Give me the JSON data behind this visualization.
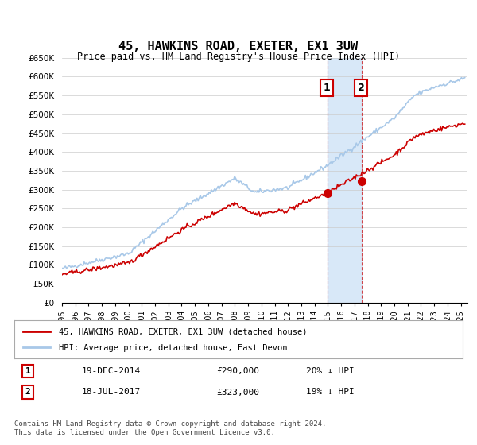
{
  "title": "45, HAWKINS ROAD, EXETER, EX1 3UW",
  "subtitle": "Price paid vs. HM Land Registry's House Price Index (HPI)",
  "ylabel_ticks": [
    "£0",
    "£50K",
    "£100K",
    "£150K",
    "£200K",
    "£250K",
    "£300K",
    "£350K",
    "£400K",
    "£450K",
    "£500K",
    "£550K",
    "£600K",
    "£650K"
  ],
  "ylim": [
    0,
    650000
  ],
  "xlim_start": 1995.0,
  "xlim_end": 2025.5,
  "hpi_color": "#a8c8e8",
  "price_color": "#cc0000",
  "marker1_date": 2014.97,
  "marker2_date": 2017.54,
  "marker1_price": 290000,
  "marker2_price": 323000,
  "legend_line1": "45, HAWKINS ROAD, EXETER, EX1 3UW (detached house)",
  "legend_line2": "HPI: Average price, detached house, East Devon",
  "table_row1": [
    "1",
    "19-DEC-2014",
    "£290,000",
    "20% ↓ HPI"
  ],
  "table_row2": [
    "2",
    "18-JUL-2017",
    "£323,000",
    "19% ↓ HPI"
  ],
  "footnote": "Contains HM Land Registry data © Crown copyright and database right 2024.\nThis data is licensed under the Open Government Licence v3.0.",
  "background_color": "#ffffff",
  "grid_color": "#cccccc",
  "shaded_region_color": "#d8e8f8"
}
